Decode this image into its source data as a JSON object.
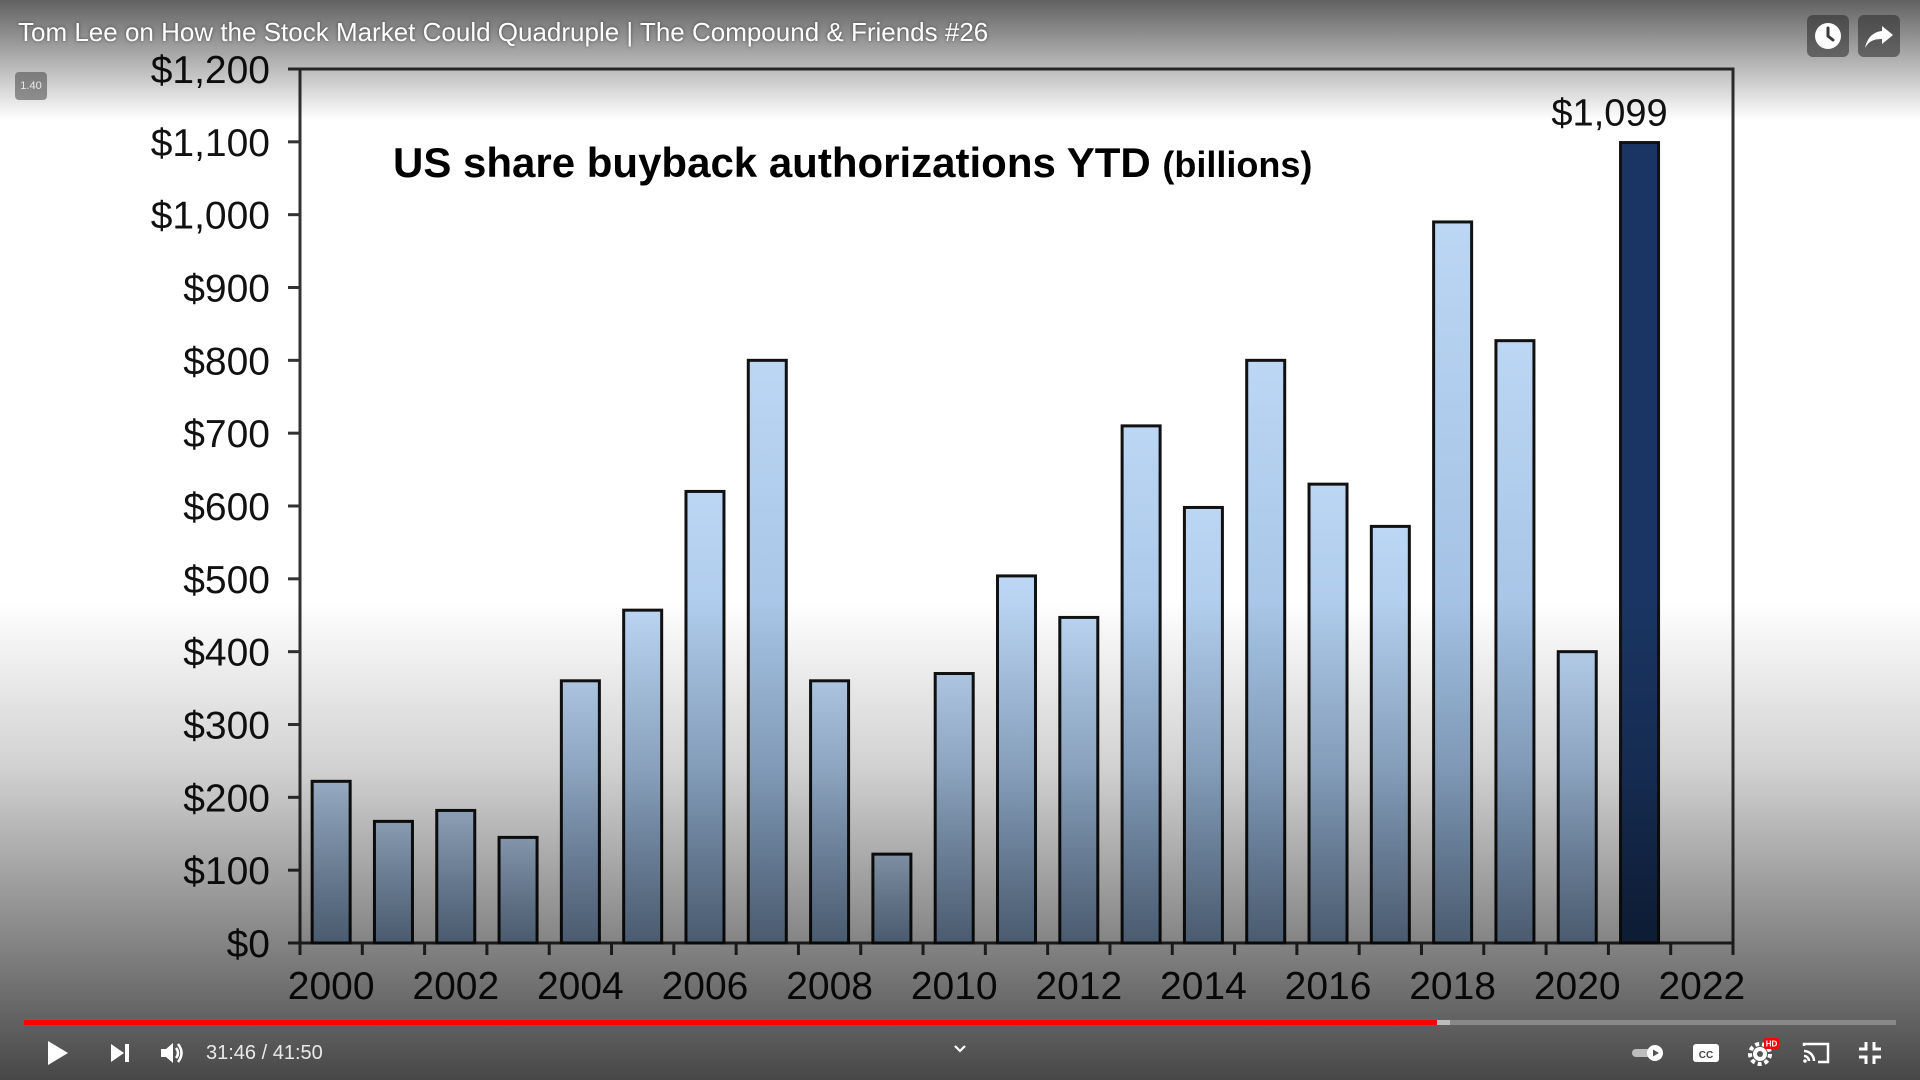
{
  "player": {
    "title": "Tom Lee on How the Stock Market Could Quadruple | The Compound & Friends #26",
    "speed_badge": "1.40",
    "time_current": "31:46",
    "time_separator": " / ",
    "time_total": "41:50",
    "progress_played_fraction": 0.755,
    "progress_buffered_fraction": 0.762,
    "hd_badge": "HD",
    "accent_color": "#ff0000",
    "icons": [
      "watch-later-icon",
      "share-icon",
      "play-icon",
      "next-icon",
      "volume-icon",
      "chevron-down-icon",
      "autoplay-toggle-icon",
      "captions-icon",
      "settings-icon",
      "cast-icon",
      "exit-fullscreen-icon"
    ]
  },
  "chart_data": {
    "type": "bar",
    "title": "US share buyback authorizations YTD",
    "title_suffix": "(billions)",
    "x_ticks": [
      "2000",
      "2002",
      "2004",
      "2006",
      "2008",
      "2010",
      "2012",
      "2014",
      "2016",
      "2018",
      "2020",
      "2022"
    ],
    "y_ticks": [
      "$0",
      "$100",
      "$200",
      "$300",
      "$400",
      "$500",
      "$600",
      "$700",
      "$800",
      "$900",
      "$1,000",
      "$1,100",
      "$1,200"
    ],
    "ylim": [
      0,
      1200
    ],
    "xlim": [
      2000,
      2022
    ],
    "x": [
      2000,
      2001,
      2002,
      2003,
      2004,
      2005,
      2006,
      2007,
      2008,
      2009,
      2010,
      2011,
      2012,
      2013,
      2014,
      2015,
      2016,
      2017,
      2018,
      2019,
      2020,
      2021
    ],
    "values": [
      222,
      167,
      182,
      145,
      360,
      457,
      620,
      800,
      360,
      122,
      370,
      504,
      447,
      710,
      598,
      800,
      630,
      572,
      990,
      827,
      400,
      1099
    ],
    "highlight_index": 21,
    "highlight_label": "$1,099",
    "colors": {
      "bar_light": "#bcd6f4",
      "bar_dark": "#8fb0d6",
      "highlight": "#1a3563",
      "outline": "#111111",
      "axis": "#333333"
    },
    "grid": false,
    "legend": "none"
  }
}
